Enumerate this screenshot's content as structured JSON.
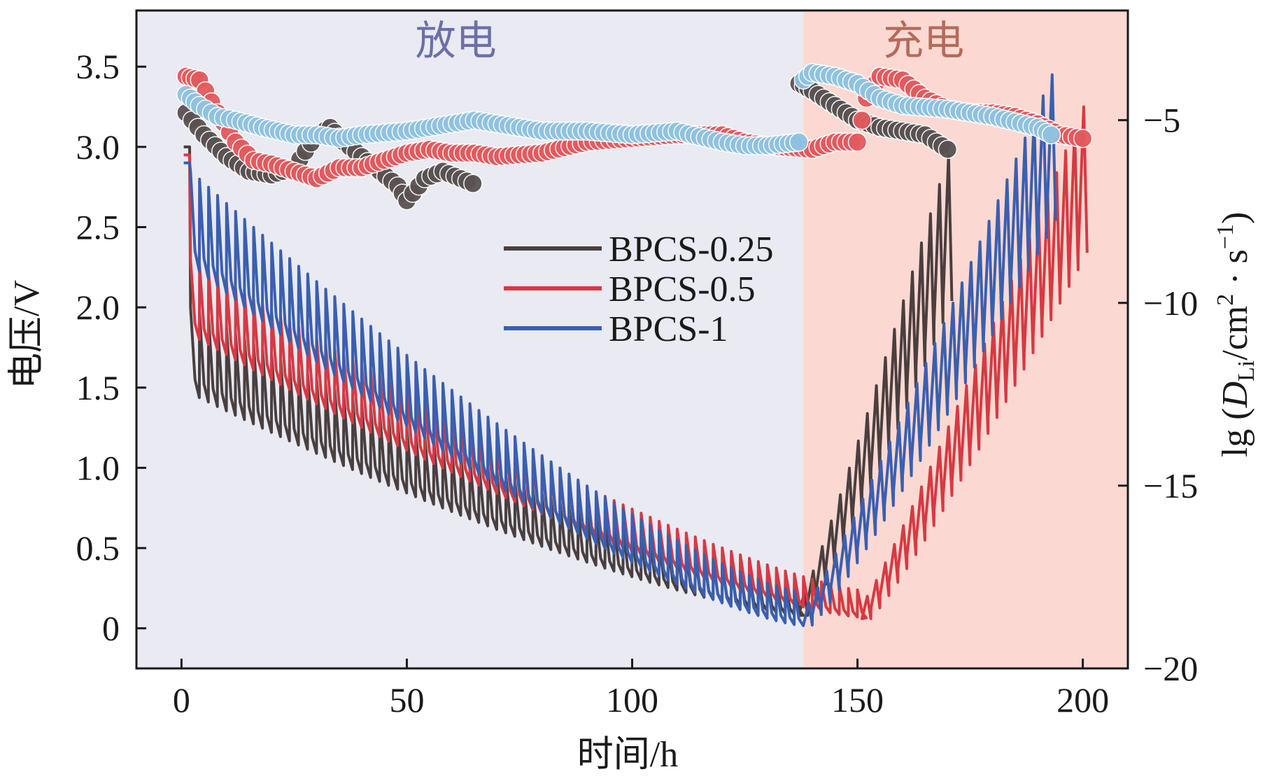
{
  "chart_data": {
    "type": "line",
    "title": "",
    "xlabel": "时间/h",
    "ylabel": "电压/V",
    "y2label": "lg (D_Li/cm²·s⁻¹)",
    "y2label_parts": {
      "prefix": "lg (",
      "symbol": "D",
      "subscript": "Li",
      "mid": "/cm",
      "sup2": "2",
      "dot": " · s",
      "sup_neg1": "−1",
      "suffix": ")"
    },
    "xlim": [
      -10,
      210
    ],
    "ylim": [
      -0.25,
      3.85
    ],
    "y2lim": [
      -20,
      -2
    ],
    "xticks": [
      0,
      50,
      100,
      150,
      200
    ],
    "xtick_labels": [
      "0",
      "50",
      "100",
      "150",
      "200"
    ],
    "yticks": [
      0,
      0.5,
      1.0,
      1.5,
      2.0,
      2.5,
      3.0,
      3.5
    ],
    "ytick_labels": [
      "0",
      "0.5",
      "1.0",
      "1.5",
      "2.0",
      "2.5",
      "3.0",
      "3.5"
    ],
    "y2ticks": [
      -5,
      -10,
      -15,
      -20
    ],
    "y2tick_labels": [
      "−5",
      "−10",
      "−15",
      "−20"
    ],
    "regions": [
      {
        "label": "放电",
        "x_range": [
          -10,
          138
        ],
        "color": "#e9eaf2",
        "text_color": "#6b6fa8"
      },
      {
        "label": "充电",
        "x_range": [
          138,
          210
        ],
        "color": "#fbd9d2",
        "text_color": "#b56a5a"
      }
    ],
    "legend": {
      "position": "center",
      "entries": [
        "BPCS-0.25",
        "BPCS-0.5",
        "BPCS-1"
      ]
    },
    "series": [
      {
        "name": "BPCS-0.25",
        "color": "#4a3f3f",
        "dot_color": "#5a5252",
        "voltage_pulse": {
          "start": 2,
          "discharge_end": 137,
          "charge_end": 171,
          "period": 2,
          "v_start": 1.55,
          "v_min": 0.12,
          "v_charge_end": 2.3,
          "relax": 0.45
        },
        "diffusion_points": [
          [
            1,
            -4.8
          ],
          [
            5,
            -5.4
          ],
          [
            10,
            -6.0
          ],
          [
            15,
            -6.4
          ],
          [
            20,
            -6.5
          ],
          [
            25,
            -6.3
          ],
          [
            30,
            -5.4
          ],
          [
            33,
            -5.2
          ],
          [
            36,
            -5.6
          ],
          [
            40,
            -6.0
          ],
          [
            44,
            -6.4
          ],
          [
            48,
            -6.8
          ],
          [
            50,
            -7.2
          ],
          [
            54,
            -6.6
          ],
          [
            58,
            -6.4
          ],
          [
            62,
            -6.6
          ],
          [
            66,
            -6.8
          ],
          [
            137,
            -4.0
          ],
          [
            140,
            -4.2
          ],
          [
            145,
            -4.6
          ],
          [
            150,
            -5.0
          ],
          [
            155,
            -5.2
          ],
          [
            160,
            -5.3
          ],
          [
            165,
            -5.4
          ],
          [
            170,
            -5.8
          ]
        ]
      },
      {
        "name": "BPCS-0.5",
        "color": "#d63a43",
        "dot_color": "#e25a5e",
        "voltage_pulse": {
          "start": 2,
          "discharge_end": 151,
          "charge_end": 200,
          "period": 2,
          "v_start": 1.9,
          "v_min": 0.1,
          "v_charge_end": 2.6,
          "relax": 0.4
        },
        "diffusion_points": [
          [
            1,
            -3.8
          ],
          [
            4,
            -3.9
          ],
          [
            8,
            -4.8
          ],
          [
            12,
            -5.6
          ],
          [
            16,
            -6.1
          ],
          [
            20,
            -6.2
          ],
          [
            25,
            -6.4
          ],
          [
            30,
            -6.6
          ],
          [
            35,
            -6.3
          ],
          [
            40,
            -6.3
          ],
          [
            45,
            -6.1
          ],
          [
            50,
            -5.9
          ],
          [
            55,
            -5.8
          ],
          [
            60,
            -5.9
          ],
          [
            65,
            -5.9
          ],
          [
            70,
            -6.0
          ],
          [
            80,
            -5.9
          ],
          [
            90,
            -5.6
          ],
          [
            100,
            -5.5
          ],
          [
            110,
            -5.4
          ],
          [
            120,
            -5.4
          ],
          [
            125,
            -5.6
          ],
          [
            130,
            -5.7
          ],
          [
            140,
            -5.8
          ],
          [
            145,
            -5.6
          ],
          [
            150,
            -5.6
          ],
          [
            152,
            -4.4
          ],
          [
            155,
            -3.8
          ],
          [
            160,
            -3.9
          ],
          [
            165,
            -4.4
          ],
          [
            170,
            -4.7
          ],
          [
            175,
            -4.8
          ],
          [
            180,
            -4.8
          ],
          [
            185,
            -4.9
          ],
          [
            190,
            -5.1
          ],
          [
            195,
            -5.4
          ],
          [
            200,
            -5.5
          ]
        ]
      },
      {
        "name": "BPCS-1",
        "color": "#3a5fb0",
        "dot_color": "#8fc2e0",
        "voltage_pulse": {
          "start": 2,
          "discharge_end": 138,
          "charge_end": 194,
          "period": 2,
          "v_start": 2.35,
          "v_min": 0.06,
          "v_charge_end": 2.8,
          "relax": 0.5
        },
        "diffusion_points": [
          [
            1,
            -4.3
          ],
          [
            4,
            -4.6
          ],
          [
            8,
            -4.9
          ],
          [
            12,
            -5.0
          ],
          [
            18,
            -5.2
          ],
          [
            25,
            -5.4
          ],
          [
            30,
            -5.4
          ],
          [
            35,
            -5.5
          ],
          [
            40,
            -5.4
          ],
          [
            50,
            -5.3
          ],
          [
            60,
            -5.1
          ],
          [
            65,
            -5.0
          ],
          [
            70,
            -5.1
          ],
          [
            80,
            -5.3
          ],
          [
            90,
            -5.3
          ],
          [
            100,
            -5.4
          ],
          [
            110,
            -5.3
          ],
          [
            120,
            -5.6
          ],
          [
            125,
            -5.7
          ],
          [
            130,
            -5.7
          ],
          [
            137,
            -5.6
          ],
          [
            138,
            -3.9
          ],
          [
            140,
            -3.7
          ],
          [
            145,
            -3.8
          ],
          [
            150,
            -4.0
          ],
          [
            155,
            -4.4
          ],
          [
            160,
            -4.6
          ],
          [
            170,
            -4.7
          ],
          [
            180,
            -4.9
          ],
          [
            190,
            -5.2
          ],
          [
            193,
            -5.4
          ]
        ]
      }
    ]
  }
}
